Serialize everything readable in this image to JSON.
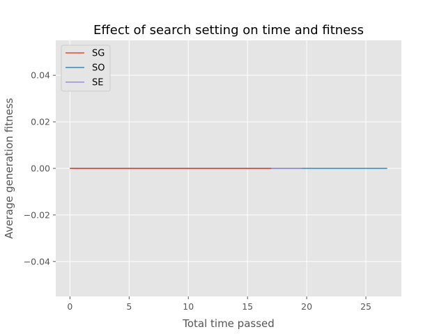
{
  "chart_data": {
    "type": "line",
    "title": "Effect of search setting on time and fitness",
    "xlabel": "Total time passed",
    "ylabel": "Average generation fitness",
    "xlim": [
      -1.2,
      28.0
    ],
    "ylim": [
      -0.055,
      0.055
    ],
    "xticks": [
      0,
      5,
      10,
      15,
      20,
      25
    ],
    "yticks": [
      -0.04,
      -0.02,
      0.0,
      0.02,
      0.04
    ],
    "xtick_labels": [
      "0",
      "5",
      "10",
      "15",
      "20",
      "25"
    ],
    "ytick_labels": [
      "−0.04",
      "−0.02",
      "0.00",
      "0.02",
      "0.04"
    ],
    "grid": true,
    "legend_position": "top-left",
    "series": [
      {
        "name": "SG",
        "color": "#e24a33",
        "x": [
          0,
          17.0
        ],
        "y": [
          0,
          0
        ]
      },
      {
        "name": "SO",
        "color": "#348abd",
        "x": [
          0,
          26.8
        ],
        "y": [
          0,
          0
        ]
      },
      {
        "name": "SE",
        "color": "#988ed5",
        "x": [
          0,
          19.6
        ],
        "y": [
          0,
          0
        ]
      }
    ]
  }
}
